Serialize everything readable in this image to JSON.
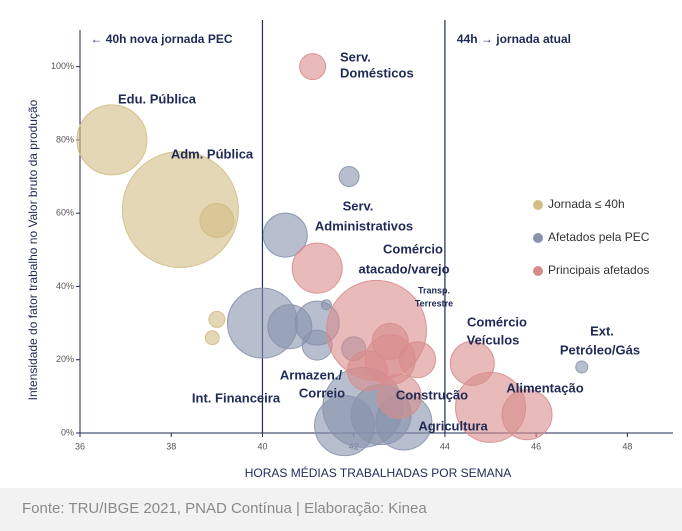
{
  "chart_data": {
    "type": "scatter",
    "xlabel": "HORAS MÉDIAS TRABALHADAS POR SEMANA",
    "ylabel": "Intensidade do fator trabalho no Valor bruto da produção",
    "source": "Fonte: TRU/IBGE 2021, PNAD Contínua  |  Elaboração: Kinea",
    "xlim": [
      36,
      49
    ],
    "xticks": [
      36,
      38,
      40,
      42,
      44,
      46,
      48
    ],
    "ylim": [
      0,
      110
    ],
    "yticks": [
      {
        "value": 0,
        "label": "0%"
      },
      {
        "value": 20,
        "label": "20%"
      },
      {
        "value": 40,
        "label": "40%"
      },
      {
        "value": 60,
        "label": "60%"
      },
      {
        "value": 80,
        "label": "80%"
      },
      {
        "value": 100,
        "label": "100%"
      }
    ],
    "reference_lines": [
      40,
      44
    ],
    "reference_labels": [
      "← 40h  nova jornada PEC",
      "44h → jornada atual"
    ],
    "series": [
      {
        "name": "Jornada ≤ 40h",
        "color": "#d2bd84",
        "x": [
          36.7,
          38.2,
          39.0,
          39.0,
          38.9
        ],
        "values": [
          80,
          61,
          58,
          31,
          26
        ],
        "sizes": [
          35,
          58,
          17,
          8,
          7
        ]
      },
      {
        "name": "Afetados pela PEC",
        "color": "#8792ab",
        "x": [
          40.5,
          41.9,
          40.0,
          40.6,
          41.2,
          41.2,
          41.4,
          42.2,
          42.6,
          43.1,
          47.0,
          42.0,
          41.8
        ],
        "values": [
          54,
          70,
          30,
          29,
          30,
          24,
          35,
          7,
          5,
          3,
          18,
          23,
          2
        ],
        "sizes": [
          22,
          10,
          35,
          22,
          22,
          15,
          5,
          40,
          30,
          28,
          6,
          12,
          30
        ]
      },
      {
        "name": "Principais afetados",
        "color": "#d98c8c",
        "x": [
          41.1,
          41.2,
          42.5,
          42.8,
          43.4,
          42.8,
          42.3,
          44.6,
          45.0,
          45.8,
          43.0
        ],
        "values": [
          100,
          45,
          28,
          20,
          20,
          25,
          17,
          19,
          7,
          5,
          10
        ],
        "sizes": [
          13,
          25,
          50,
          25,
          18,
          18,
          20,
          22,
          35,
          25,
          22
        ]
      }
    ],
    "legend": "right",
    "annotations": [
      [
        "Edu. Pública"
      ],
      [
        "Adm. Pública"
      ],
      [
        "Serv.",
        "Domésticos"
      ],
      [
        "Serv.",
        "Administrativos"
      ],
      [
        "Comércio",
        "atacado/varejo"
      ],
      [
        "Transp.",
        "Terrestre"
      ],
      [
        "Comércio",
        "Veículos"
      ],
      [
        "Ext.",
        "Petróleo/Gás"
      ],
      [
        "Alimentação"
      ],
      [
        "Armazen./",
        "Correio"
      ],
      [
        "Int. Financeira"
      ],
      [
        "Construção"
      ],
      [
        "Agricultura"
      ]
    ]
  }
}
